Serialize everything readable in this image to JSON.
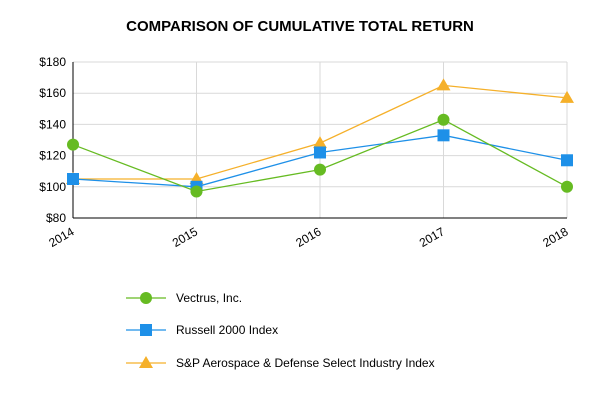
{
  "chart_data": {
    "type": "line",
    "title": "COMPARISON OF CUMULATIVE TOTAL RETURN",
    "xlabel": "",
    "ylabel": "",
    "categories": [
      "2014",
      "2015",
      "2016",
      "2017",
      "2018"
    ],
    "ylim": [
      80,
      180
    ],
    "yticks": [
      "$80",
      "$100",
      "$120",
      "$140",
      "$160",
      "$180"
    ],
    "ytick_values": [
      80,
      100,
      120,
      140,
      160,
      180
    ],
    "grid": true,
    "legend_position": "bottom",
    "series": [
      {
        "name": "Vectrus, Inc.",
        "values": [
          127,
          97,
          111,
          143,
          100
        ],
        "color": "#66bb22",
        "marker": "circle"
      },
      {
        "name": "Russell 2000 Index",
        "values": [
          105,
          100,
          122,
          133,
          117
        ],
        "color": "#1e90e8",
        "marker": "square"
      },
      {
        "name": "S&P Aerospace & Defense Select Industry Index",
        "values": [
          105,
          105,
          128,
          165,
          157
        ],
        "color": "#f5b02a",
        "marker": "triangle"
      }
    ]
  }
}
